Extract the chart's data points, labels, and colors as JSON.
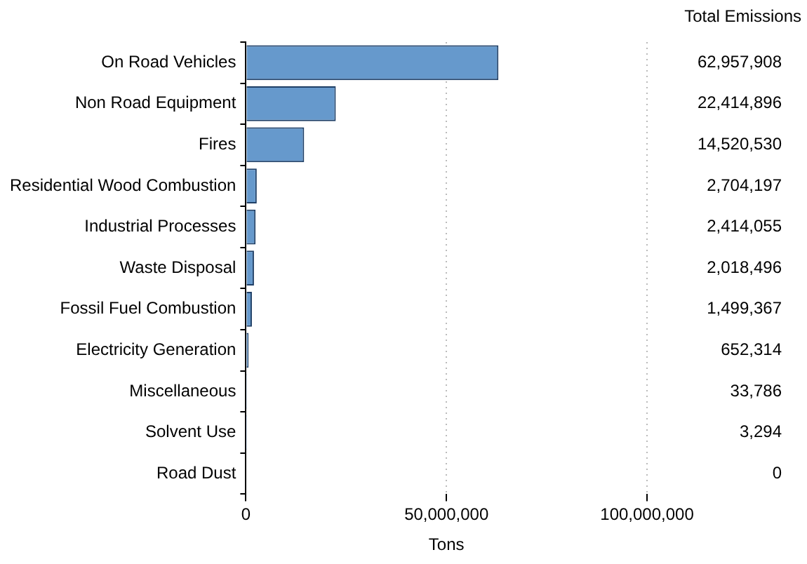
{
  "chart_data": {
    "type": "bar",
    "orientation": "horizontal",
    "xlabel": "Tons",
    "categories": [
      "On Road Vehicles",
      "Non Road Equipment",
      "Fires",
      "Residential Wood Combustion",
      "Industrial Processes",
      "Waste Disposal",
      "Fossil Fuel Combustion",
      "Electricity Generation",
      "Miscellaneous",
      "Solvent Use",
      "Road Dust"
    ],
    "values": [
      62957908,
      22414896,
      14520530,
      2704197,
      2414055,
      2018496,
      1499367,
      652314,
      33786,
      3294,
      0
    ],
    "value_labels": [
      "62,957,908",
      "22,414,896",
      "14,520,530",
      "2,704,197",
      "2,414,055",
      "2,018,496",
      "1,499,367",
      "652,314",
      "33,786",
      "3,294",
      "0"
    ],
    "color": "#6699cc",
    "xlim": [
      0,
      100000000
    ],
    "xticks": [
      0,
      {
        "value": 50000000,
        "label": "50,000,000"
      },
      {
        "value": 100000000,
        "label": "100,000,000"
      }
    ],
    "grid": "x",
    "annotations": [
      "Total Emissions"
    ]
  }
}
